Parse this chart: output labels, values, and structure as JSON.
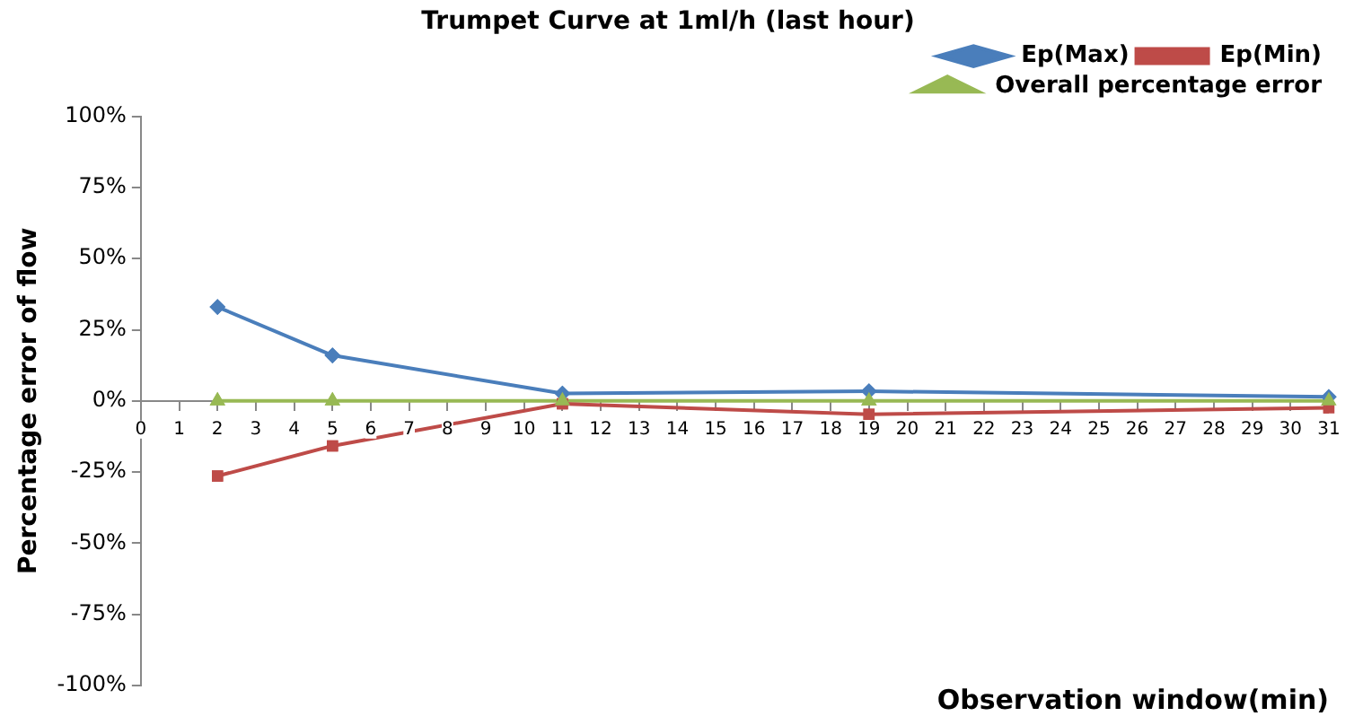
{
  "chart_data": {
    "type": "line",
    "title": "Trumpet Curve at 1ml/h (last hour)",
    "xlabel": "Observation window(min)",
    "ylabel": "Percentage error of flow",
    "x": [
      2,
      5,
      11,
      19,
      31
    ],
    "series": [
      {
        "name": "Ep(Max)",
        "color": "#4a7ebb",
        "marker": "diamond",
        "values": [
          33,
          16,
          2.6,
          3.4,
          1.4
        ]
      },
      {
        "name": "Ep(Min)",
        "color": "#be4b48",
        "marker": "square",
        "values": [
          -26.4,
          -15.8,
          -1,
          -4.7,
          -2.4
        ]
      },
      {
        "name": "Overall percentage error",
        "color": "#98b954",
        "marker": "triangle",
        "values": [
          0,
          0,
          0,
          0,
          0
        ]
      }
    ],
    "xlim": [
      0,
      31
    ],
    "xticks": [
      0,
      1,
      2,
      3,
      4,
      5,
      6,
      7,
      8,
      9,
      10,
      11,
      12,
      13,
      14,
      15,
      16,
      17,
      18,
      19,
      20,
      21,
      22,
      23,
      24,
      25,
      26,
      27,
      28,
      29,
      30,
      31
    ],
    "ylim": [
      -100,
      100
    ],
    "yticks": [
      {
        "value": -100,
        "label": "-100%"
      },
      {
        "value": -75,
        "label": "-75%"
      },
      {
        "value": -50,
        "label": "-50%"
      },
      {
        "value": -25,
        "label": "-25%"
      },
      {
        "value": 0,
        "label": "0%"
      },
      {
        "value": 25,
        "label": "25%"
      },
      {
        "value": 50,
        "label": "50%"
      },
      {
        "value": 75,
        "label": "75%"
      },
      {
        "value": 100,
        "label": "100%"
      }
    ],
    "grid": false,
    "legend": "top right",
    "line_style": "solid"
  }
}
